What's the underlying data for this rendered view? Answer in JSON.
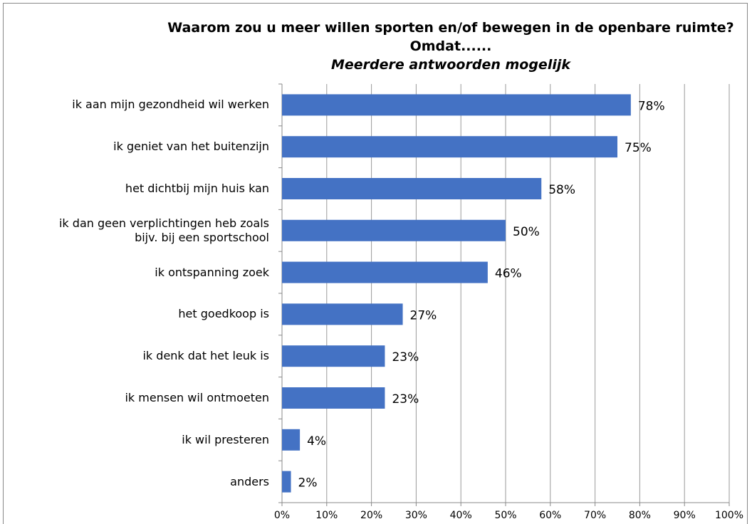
{
  "chart_data": {
    "type": "bar",
    "orientation": "horizontal",
    "title": "Waarom zou u meer willen sporten en/of bewegen in de openbare ruimte? Omdat......",
    "subtitle": "Meerdere antwoorden mogelijk",
    "categories": [
      "ik aan mijn gezondheid wil werken",
      "ik geniet van het buitenzijn",
      "het dichtbij mijn huis kan",
      "ik dan geen verplichtingen heb zoals\nbijv. bij een sportschool",
      "ik ontspanning zoek",
      "het goedkoop is",
      "ik denk dat het leuk is",
      "ik mensen wil ontmoeten",
      "ik wil presteren",
      "anders"
    ],
    "values": [
      78,
      75,
      58,
      50,
      46,
      27,
      23,
      23,
      4,
      2
    ],
    "value_labels": [
      "78%",
      "75%",
      "58%",
      "50%",
      "46%",
      "27%",
      "23%",
      "23%",
      "4%",
      "2%"
    ],
    "color": "#4472c4",
    "xlim": [
      0,
      100
    ],
    "xticks": [
      {
        "value": 0,
        "label": "0%"
      },
      {
        "value": 10,
        "label": "10%"
      },
      {
        "value": 20,
        "label": "20%"
      },
      {
        "value": 30,
        "label": "30%"
      },
      {
        "value": 40,
        "label": "40%"
      },
      {
        "value": 50,
        "label": "50%"
      },
      {
        "value": 60,
        "label": "60%"
      },
      {
        "value": 70,
        "label": "70%"
      },
      {
        "value": 80,
        "label": "80%"
      },
      {
        "value": 90,
        "label": "90%"
      },
      {
        "value": 100,
        "label": "100%"
      }
    ],
    "grid": true
  }
}
